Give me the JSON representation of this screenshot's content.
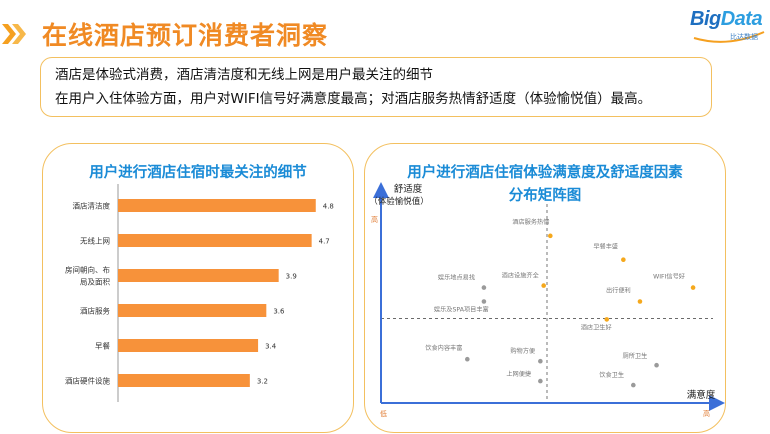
{
  "header": {
    "title": "在线酒店预订消费者洞察",
    "brand": {
      "name_a": "Big",
      "name_b": "Data",
      "sub": "比达数据"
    }
  },
  "summary": {
    "lines": [
      "酒店是体验式消费，酒店清洁度和无线上网是用户最关注的细节",
      "在用户入住体验方面，用户对WIFI信号好满意度最高；对酒店服务热情舒适度（体验愉悦值）最高。"
    ]
  },
  "colors": {
    "accent": "#f08a24",
    "bar": "#f7923a",
    "title_blue": "#1a8bd6",
    "axis_blue": "#3b6fd8",
    "dot_orange": "#f5a81c",
    "dot_gray": "#9a9a9a"
  },
  "chart_data": [
    {
      "type": "bar",
      "orientation": "horizontal",
      "title": "用户进行酒店住宿时最关注的细节",
      "categories": [
        "酒店清洁度",
        "无线上网",
        "房间朝向、布局及面积",
        "酒店服务",
        "早餐",
        "酒店硬件设施"
      ],
      "category_lines": [
        [
          "酒店清洁度"
        ],
        [
          "无线上网"
        ],
        [
          "房间朝向、布",
          "局及面积"
        ],
        [
          "酒店服务"
        ],
        [
          "早餐"
        ],
        [
          "酒店硬件设施"
        ]
      ],
      "values": [
        4.8,
        4.7,
        3.9,
        3.6,
        3.4,
        3.2
      ],
      "xlim": [
        0,
        5
      ]
    },
    {
      "type": "scatter",
      "title_lines": [
        "用户进行酒店住宿体验满意度及舒适度因素",
        "分布矩阵图"
      ],
      "xlabel": "满意度",
      "ylabel_lines": [
        "舒适度",
        "（体验愉悦值）"
      ],
      "x_low_label": "低",
      "x_high_label": "高",
      "y_high_label": "高",
      "y_low_label": "低",
      "xlim": [
        0,
        100
      ],
      "ylim": [
        0,
        100
      ],
      "points": [
        {
          "label": "酒店服务热情",
          "x": 51,
          "y": 84,
          "color": "orange",
          "label_dx": -38,
          "label_dy": -12
        },
        {
          "label": "早餐丰盛",
          "x": 73,
          "y": 72,
          "color": "orange",
          "label_dx": -30,
          "label_dy": -11
        },
        {
          "label": "WIFI信号好",
          "x": 94,
          "y": 58,
          "color": "orange",
          "label_dx": -40,
          "label_dy": -9
        },
        {
          "label": "酒店设施齐全",
          "x": 49,
          "y": 59,
          "color": "orange",
          "label_dx": -42,
          "label_dy": -8
        },
        {
          "label": "出行便利",
          "x": 78,
          "y": 51,
          "color": "orange",
          "label_dx": -34,
          "label_dy": -9
        },
        {
          "label": "酒店卫生好",
          "x": 68,
          "y": 42,
          "color": "orange",
          "label_dx": -26,
          "label_dy": 10
        },
        {
          "label": "娱乐地点易找",
          "x": 31,
          "y": 58,
          "color": "gray",
          "label_dx": -46,
          "label_dy": -8
        },
        {
          "label": "娱乐及SPA项目丰富",
          "x": 31,
          "y": 51,
          "color": "gray",
          "label_dx": -50,
          "label_dy": 10
        },
        {
          "label": "饮食内容丰富",
          "x": 26,
          "y": 22,
          "color": "gray",
          "label_dx": -42,
          "label_dy": -9
        },
        {
          "label": "购物方便",
          "x": 48,
          "y": 21,
          "color": "gray",
          "label_dx": -30,
          "label_dy": -8
        },
        {
          "label": "上网便捷",
          "x": 48,
          "y": 11,
          "color": "gray",
          "label_dx": -34,
          "label_dy": -5
        },
        {
          "label": "厕所卫生",
          "x": 83,
          "y": 19,
          "color": "gray",
          "label_dx": -34,
          "label_dy": -7
        },
        {
          "label": "饮食卫生",
          "x": 76,
          "y": 9,
          "color": "gray",
          "label_dx": -34,
          "label_dy": -8
        }
      ]
    }
  ]
}
